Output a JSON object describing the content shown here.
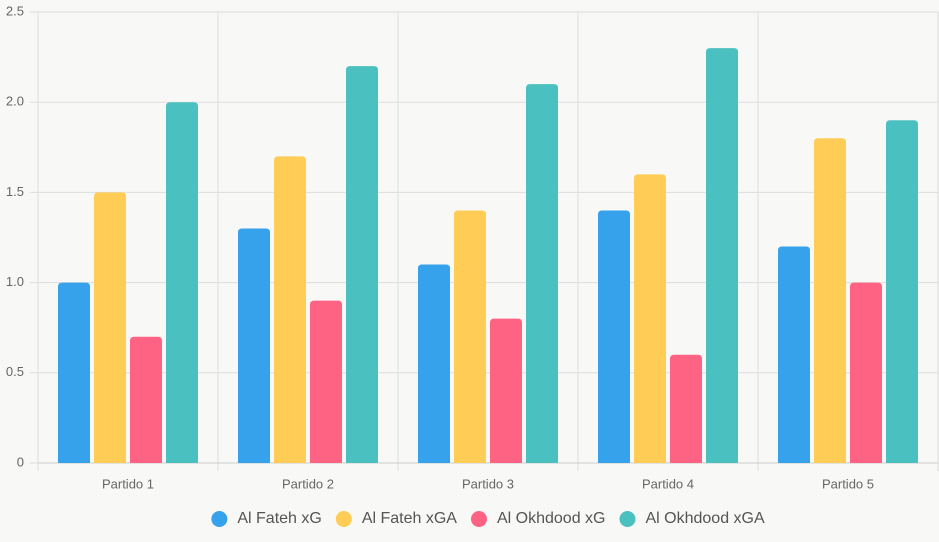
{
  "chart_data": {
    "type": "bar",
    "categories": [
      "Partido 1",
      "Partido 2",
      "Partido 3",
      "Partido 4",
      "Partido 5"
    ],
    "series": [
      {
        "name": "Al Fateh xG",
        "color": "#36a2eb",
        "values": [
          1.0,
          1.3,
          1.1,
          1.4,
          1.2
        ]
      },
      {
        "name": "Al Fateh xGA",
        "color": "#ffcd56",
        "values": [
          1.5,
          1.7,
          1.4,
          1.6,
          1.8
        ]
      },
      {
        "name": "Al Okhdood xG",
        "color": "#ff6384",
        "values": [
          0.7,
          0.9,
          0.8,
          0.6,
          1.0
        ]
      },
      {
        "name": "Al Okhdood xGA",
        "color": "#4bc0c0",
        "values": [
          2.0,
          2.2,
          2.1,
          2.3,
          1.9
        ]
      }
    ],
    "ylim": [
      0,
      2.5
    ],
    "yticks": [
      0,
      0.5,
      {
        "value": 1,
        "label": "1.0"
      },
      1.5,
      {
        "value": 2,
        "label": "2.0"
      },
      2.5
    ],
    "grid": true,
    "legend": "bottom"
  }
}
